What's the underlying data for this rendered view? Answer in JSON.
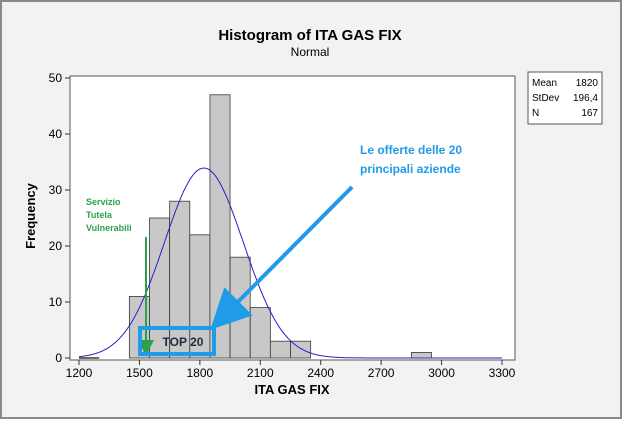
{
  "chart_data": {
    "type": "bar",
    "title": "Histogram of ITA GAS FIX",
    "subtitle": "Normal",
    "xlabel": "ITA GAS FIX",
    "ylabel": "Frequency",
    "xlim": [
      1200,
      3300
    ],
    "ylim": [
      0,
      50
    ],
    "x_ticks": [
      1200,
      1500,
      1800,
      2100,
      2400,
      2700,
      3000,
      3300
    ],
    "y_ticks": [
      0,
      10,
      20,
      30,
      40,
      50
    ],
    "grid": false,
    "bin_width": 100,
    "bins": [
      {
        "start": 1200,
        "value": 0
      },
      {
        "start": 1450,
        "value": 11
      },
      {
        "start": 1550,
        "value": 25
      },
      {
        "start": 1650,
        "value": 28
      },
      {
        "start": 1750,
        "value": 22
      },
      {
        "start": 1850,
        "value": 47
      },
      {
        "start": 1950,
        "value": 18
      },
      {
        "start": 2050,
        "value": 9
      },
      {
        "start": 2150,
        "value": 3
      },
      {
        "start": 2250,
        "value": 3
      },
      {
        "start": 2850,
        "value": 1
      }
    ],
    "normal_fit": {
      "mean": 1820,
      "stdev": 196.4,
      "n": 167
    },
    "bar_color": "#c8c8c8",
    "curve_color": "#2323c8"
  },
  "legend": {
    "rows": [
      {
        "label": "Mean",
        "value": "1820"
      },
      {
        "label": "StDev",
        "value": "196,4"
      },
      {
        "label": "N",
        "value": "167"
      }
    ]
  },
  "annotations": {
    "top20_text_line1": "Le offerte delle  20",
    "top20_text_line2": "principali aziende",
    "servizio_line1": "Servizio",
    "servizio_line2": "Tutela",
    "servizio_line3": "Vulnerabili",
    "top20_box_label": "TOP 20",
    "blue_color": "#1f9be8",
    "green_color": "#2aa14b"
  }
}
